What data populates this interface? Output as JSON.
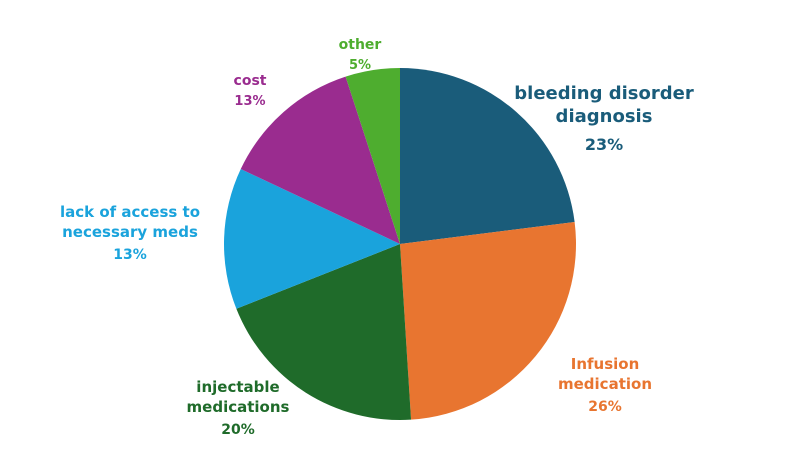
{
  "chart_data": {
    "type": "pie",
    "title": "",
    "start_angle_deg": 0,
    "direction": "clockwise",
    "slices": [
      {
        "key": "bleeding",
        "label_lines": [
          "bleeding disorder",
          "diagnosis"
        ],
        "value": 23,
        "value_label": "23%",
        "color": "#1a5c7a"
      },
      {
        "key": "infusion",
        "label_lines": [
          "Infusion",
          "medication"
        ],
        "value": 26,
        "value_label": "26%",
        "color": "#e87530"
      },
      {
        "key": "injectable",
        "label_lines": [
          "injectable",
          "medications"
        ],
        "value": 20,
        "value_label": "20%",
        "color": "#1f6b2a"
      },
      {
        "key": "access",
        "label_lines": [
          "lack of access to",
          "necessary meds"
        ],
        "value": 13,
        "value_label": "13%",
        "color": "#1aa3dc"
      },
      {
        "key": "cost",
        "label_lines": [
          "cost"
        ],
        "value": 13,
        "value_label": "13%",
        "color": "#9a2c8f"
      },
      {
        "key": "other",
        "label_lines": [
          "other"
        ],
        "value": 5,
        "value_label": "5%",
        "color": "#4ead2f"
      }
    ]
  }
}
